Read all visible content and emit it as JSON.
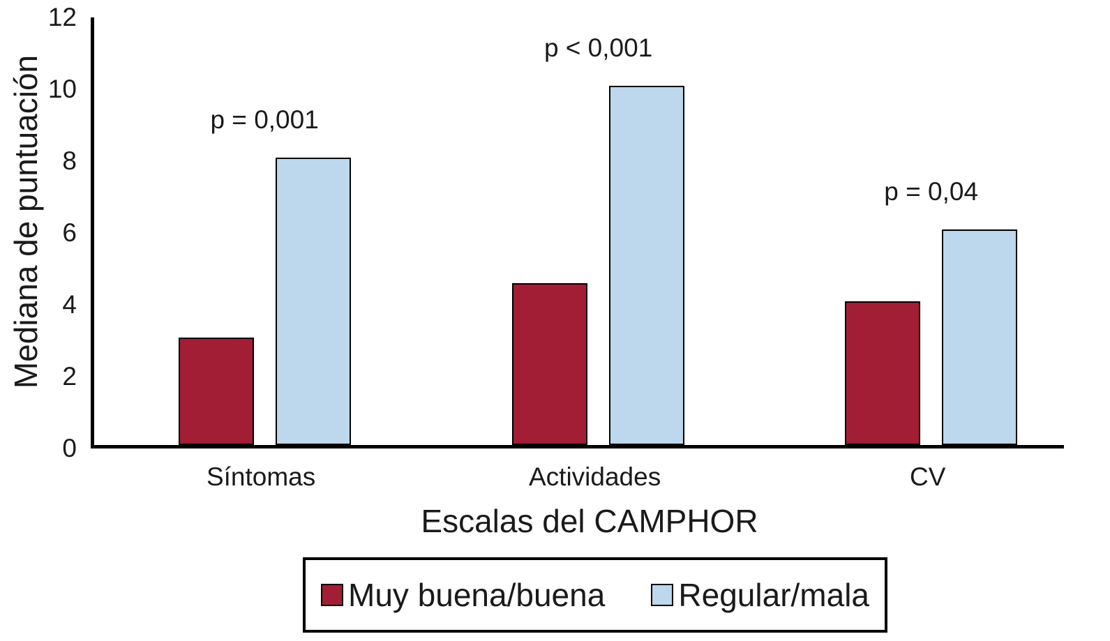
{
  "chart_data": {
    "type": "bar",
    "title": "",
    "xlabel": "Escalas del CAMPHOR",
    "ylabel": "Mediana de puntuación",
    "categories": [
      "Síntomas",
      "Actividades",
      "CV"
    ],
    "series": [
      {
        "name": "Muy buena/buena",
        "color": "#a21e35",
        "values": [
          3,
          4.5,
          4
        ]
      },
      {
        "name": "Regular/mala",
        "color": "#bdd7ec",
        "values": [
          8,
          10,
          6
        ]
      }
    ],
    "annotations": [
      {
        "category": "Síntomas",
        "text": "p = 0,001"
      },
      {
        "category": "Actividades",
        "text": "p < 0,001"
      },
      {
        "category": "CV",
        "text": "p = 0,04"
      }
    ],
    "ylim": [
      0,
      12
    ],
    "yticks": [
      0,
      2,
      4,
      6,
      8,
      10,
      12
    ],
    "grid": false,
    "legend_position": "bottom",
    "axis_color": "#000000",
    "bar_border_color": "#000000"
  }
}
